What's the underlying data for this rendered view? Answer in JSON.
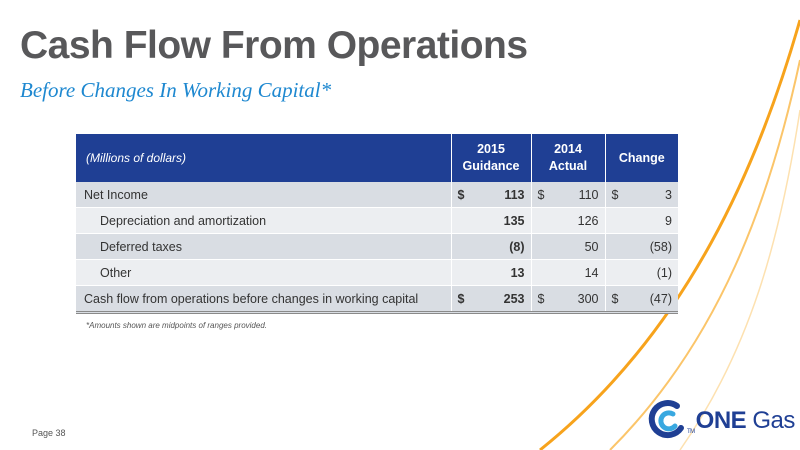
{
  "title": "Cash Flow From Operations",
  "subtitle": "Before Changes In Working Capital*",
  "table": {
    "header": {
      "label": "(Millions of dollars)",
      "col1_line1": "2015",
      "col1_line2": "Guidance",
      "col2_line1": "2014",
      "col2_line2": "Actual",
      "col3": "Change"
    },
    "rows": [
      {
        "label": "Net Income",
        "c1_dollar": "$",
        "c1": "113",
        "c2_dollar": "$",
        "c2": "110",
        "c3_dollar": "$",
        "c3": "3"
      },
      {
        "label": "Depreciation and amortization",
        "c1": "135",
        "c2": "126",
        "c3": "9"
      },
      {
        "label": "Deferred taxes",
        "c1": "(8)",
        "c2": "50",
        "c3": "(58)"
      },
      {
        "label": "Other",
        "c1": "13",
        "c2": "14",
        "c3": "(1)"
      },
      {
        "label": "Cash flow from operations before changes in working capital",
        "c1_dollar": "$",
        "c1": "253",
        "c2_dollar": "$",
        "c2": "300",
        "c3_dollar": "$",
        "c3": "(47)"
      }
    ]
  },
  "footnote": "*Amounts shown are midpoints of ranges provided.",
  "page": "Page 38",
  "logo": {
    "word1": "ONE",
    "word2": "Gas",
    "tm": "TM"
  },
  "colors": {
    "title": "#58585a",
    "subtitle": "#1e88d0",
    "header_bg": "#1f3f94",
    "accent_orange": "#f7a31c"
  }
}
